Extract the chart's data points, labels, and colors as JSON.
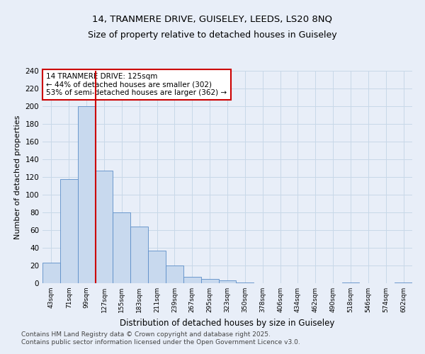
{
  "title_line1": "14, TRANMERE DRIVE, GUISELEY, LEEDS, LS20 8NQ",
  "title_line2": "Size of property relative to detached houses in Guiseley",
  "xlabel": "Distribution of detached houses by size in Guiseley",
  "ylabel": "Number of detached properties",
  "bar_labels": [
    "43sqm",
    "71sqm",
    "99sqm",
    "127sqm",
    "155sqm",
    "183sqm",
    "211sqm",
    "239sqm",
    "267sqm",
    "295sqm",
    "323sqm",
    "350sqm",
    "378sqm",
    "406sqm",
    "434sqm",
    "462sqm",
    "490sqm",
    "518sqm",
    "546sqm",
    "574sqm",
    "602sqm"
  ],
  "bar_values": [
    23,
    118,
    200,
    127,
    80,
    64,
    37,
    20,
    7,
    5,
    3,
    1,
    0,
    0,
    0,
    0,
    0,
    1,
    0,
    0,
    1
  ],
  "bar_color": "#c8d9ee",
  "bar_edge_color": "#5b8dc8",
  "vline_x_idx": 2,
  "vline_color": "#cc0000",
  "annotation_text": "14 TRANMERE DRIVE: 125sqm\n← 44% of detached houses are smaller (302)\n53% of semi-detached houses are larger (362) →",
  "annotation_box_color": "#ffffff",
  "annotation_box_edge": "#cc0000",
  "ylim": [
    0,
    240
  ],
  "yticks": [
    0,
    20,
    40,
    60,
    80,
    100,
    120,
    140,
    160,
    180,
    200,
    220,
    240
  ],
  "grid_color": "#c8d8e8",
  "footnote1": "Contains HM Land Registry data © Crown copyright and database right 2025.",
  "footnote2": "Contains public sector information licensed under the Open Government Licence v3.0.",
  "bg_color": "#e8eef8",
  "plot_bg_color": "#e8eef8"
}
